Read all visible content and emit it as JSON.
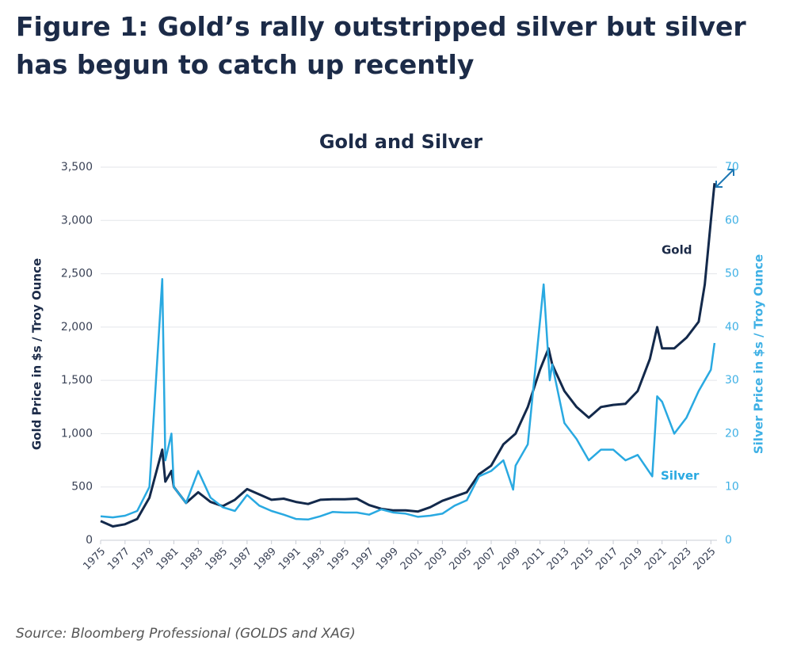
{
  "page_title": "Figure 1: Gold’s rally outstripped silver but silver has begun to catch up recently",
  "source": "Source: Bloomberg Professional (GOLDS and XAG)",
  "chart_data": {
    "type": "line",
    "title": "Gold and Silver",
    "y_label": "Gold Price in $s / Troy Ounce",
    "y2_label": "Silver Price in $s / Troy Ounce",
    "xlim": [
      1975,
      2025.5
    ],
    "xticks": [
      1975,
      1977,
      1979,
      1981,
      1983,
      1985,
      1987,
      1989,
      1991,
      1993,
      1995,
      1997,
      1999,
      2001,
      2003,
      2005,
      2007,
      2009,
      2011,
      2013,
      2015,
      2017,
      2019,
      2021,
      2023,
      2025
    ],
    "ylim": [
      0,
      3500
    ],
    "yticks": [
      0,
      500,
      {
        "value": 1000,
        "label": "1,000"
      },
      {
        "value": 1500,
        "label": "1,500"
      },
      {
        "value": 2000,
        "label": "2,000"
      },
      {
        "value": 2500,
        "label": "2,500"
      },
      {
        "value": 3000,
        "label": "3,000"
      },
      {
        "value": 3500,
        "label": "3,500"
      }
    ],
    "y2lim": [
      0,
      70
    ],
    "y2ticks": [
      0,
      10,
      20,
      30,
      40,
      50,
      60,
      70
    ],
    "grid": true,
    "series": [
      {
        "name": "Gold",
        "color": "#13294b",
        "x": [
          1975,
          1976,
          1977,
          1978,
          1979,
          1980.05,
          1980.3,
          1980.8,
          1981,
          1982,
          1983,
          1984,
          1985,
          1986,
          1987,
          1988,
          1989,
          1990,
          1991,
          1992,
          1993,
          1994,
          1995,
          1996,
          1997,
          1998,
          1999,
          2000,
          2001,
          2002,
          2003,
          2004,
          2005,
          2006,
          2007,
          2008,
          2009,
          2010,
          2011,
          2011.7,
          2012,
          2013,
          2014,
          2015,
          2016,
          2017,
          2018,
          2019,
          2020,
          2020.6,
          2021,
          2022,
          2023,
          2024,
          2024.5,
          2025,
          2025.3
        ],
        "values": [
          180,
          130,
          150,
          200,
          400,
          850,
          550,
          650,
          500,
          350,
          450,
          360,
          320,
          380,
          480,
          430,
          380,
          390,
          360,
          340,
          380,
          385,
          385,
          390,
          330,
          295,
          280,
          280,
          270,
          310,
          370,
          410,
          450,
          620,
          700,
          900,
          1000,
          1250,
          1600,
          1800,
          1650,
          1400,
          1250,
          1150,
          1250,
          1270,
          1280,
          1400,
          1700,
          2000,
          1800,
          1800,
          1900,
          2050,
          2400,
          3000,
          3350
        ]
      },
      {
        "name": "Silver",
        "color": "#29a9e1",
        "axis": "y2",
        "x": [
          1975,
          1976,
          1977,
          1978,
          1979,
          1980.05,
          1980.3,
          1980.8,
          1981,
          1982,
          1983,
          1984,
          1985,
          1986,
          1987,
          1988,
          1989,
          1990,
          1991,
          1992,
          1993,
          1994,
          1995,
          1996,
          1997,
          1998,
          1999,
          2000,
          2001,
          2002,
          2003,
          2004,
          2005,
          2006,
          2007,
          2008,
          2008.8,
          2009,
          2010,
          2011.3,
          2011.8,
          2012,
          2013,
          2014,
          2015,
          2016,
          2017,
          2018,
          2019,
          2020.2,
          2020.6,
          2021,
          2022,
          2023,
          2024,
          2025,
          2025.3
        ],
        "values": [
          4.5,
          4.3,
          4.6,
          5.5,
          10,
          49,
          15,
          20,
          10,
          7,
          13,
          8,
          6.2,
          5.5,
          8.5,
          6.5,
          5.5,
          4.8,
          4,
          3.9,
          4.5,
          5.3,
          5.2,
          5.2,
          4.8,
          5.8,
          5.2,
          5,
          4.4,
          4.6,
          5,
          6.5,
          7.5,
          12,
          13,
          15,
          9.5,
          14,
          18,
          48,
          30,
          33,
          22,
          19,
          15,
          17,
          17,
          15,
          16,
          12,
          27,
          26,
          20,
          23,
          28,
          32,
          37
        ]
      }
    ],
    "annotations": [
      {
        "text": "Gold"
      },
      {
        "text": "Silver"
      }
    ]
  }
}
